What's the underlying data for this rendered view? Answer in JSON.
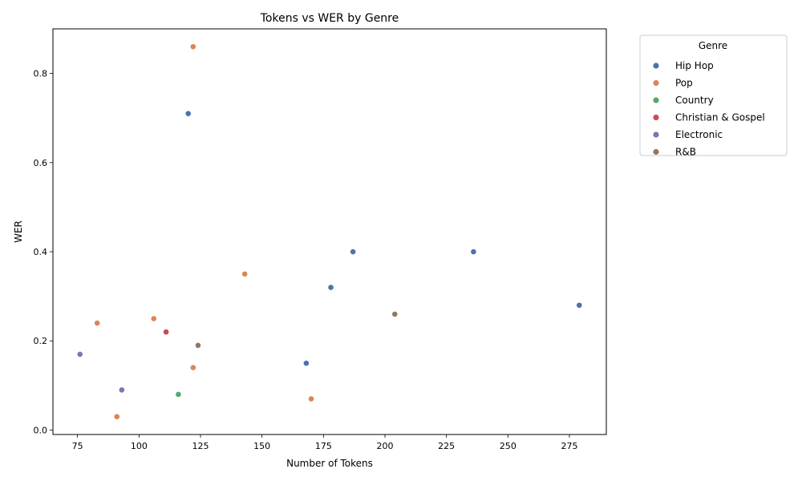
{
  "chart_data": {
    "type": "scatter",
    "title": "Tokens vs WER by Genre",
    "xlabel": "Number of Tokens",
    "ylabel": "WER",
    "xlim": [
      65,
      290
    ],
    "ylim": [
      -0.01,
      0.9
    ],
    "xticks": [
      75,
      100,
      125,
      150,
      175,
      200,
      225,
      250,
      275
    ],
    "yticks": [
      0.0,
      0.2,
      0.4,
      0.6,
      0.8
    ],
    "grid": false,
    "legend": {
      "title": "Genre",
      "placement": "outside-right-top"
    },
    "series": [
      {
        "name": "Hip Hop",
        "color": "#4c72b0",
        "points": [
          [
            120,
            0.71
          ],
          [
            187,
            0.4
          ],
          [
            236,
            0.4
          ],
          [
            178,
            0.32
          ],
          [
            279,
            0.28
          ],
          [
            168,
            0.15
          ]
        ]
      },
      {
        "name": "Pop",
        "color": "#dd8452",
        "points": [
          [
            122,
            0.86
          ],
          [
            143,
            0.35
          ],
          [
            106,
            0.25
          ],
          [
            83,
            0.24
          ],
          [
            122,
            0.14
          ],
          [
            170,
            0.07
          ],
          [
            91,
            0.03
          ]
        ]
      },
      {
        "name": "Country",
        "color": "#55a868",
        "points": [
          [
            116,
            0.08
          ]
        ]
      },
      {
        "name": "Christian & Gospel",
        "color": "#c44e52",
        "points": [
          [
            111,
            0.22
          ]
        ]
      },
      {
        "name": "Electronic",
        "color": "#8172b3",
        "points": [
          [
            76,
            0.17
          ],
          [
            93,
            0.09
          ]
        ]
      },
      {
        "name": "R&B",
        "color": "#937860",
        "points": [
          [
            204,
            0.26
          ],
          [
            124,
            0.19
          ]
        ]
      }
    ]
  }
}
